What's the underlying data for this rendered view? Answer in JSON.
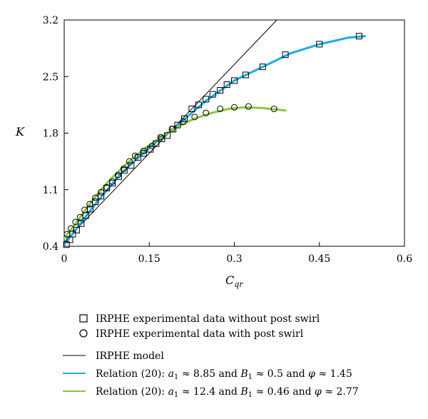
{
  "chart_data": {
    "type": "scatter",
    "title": "",
    "xlabel": "C",
    "xlabel_sub": "qr",
    "ylabel": "K",
    "xlim": [
      0,
      0.6
    ],
    "ylim": [
      0.4,
      3.2
    ],
    "x_ticks": [
      0,
      0.15,
      0.3,
      0.45,
      0.6
    ],
    "x_tick_labels": [
      "0",
      "0.15",
      "0.3",
      "0.45",
      "0.6"
    ],
    "y_ticks": [
      0.4,
      1.1,
      1.8,
      2.5,
      3.2
    ],
    "y_tick_labels": [
      "0.4",
      "1.1",
      "1.8",
      "2.5",
      "3.2"
    ],
    "grid": false,
    "legend_position": "bottom",
    "series": [
      {
        "name": "IRPHE experimental data without post swirl",
        "kind": "markers",
        "marker": "square",
        "color": "#000000",
        "x": [
          0.004,
          0.01,
          0.015,
          0.022,
          0.03,
          0.038,
          0.046,
          0.055,
          0.065,
          0.075,
          0.085,
          0.096,
          0.106,
          0.118,
          0.13,
          0.14,
          0.152,
          0.162,
          0.172,
          0.182,
          0.192,
          0.2,
          0.212,
          0.225,
          0.237,
          0.25,
          0.262,
          0.275,
          0.287,
          0.3,
          0.32,
          0.35,
          0.39,
          0.45,
          0.52
        ],
        "y": [
          0.42,
          0.48,
          0.55,
          0.6,
          0.68,
          0.78,
          0.86,
          0.95,
          1.02,
          1.12,
          1.18,
          1.26,
          1.34,
          1.4,
          1.5,
          1.55,
          1.6,
          1.67,
          1.73,
          1.77,
          1.85,
          1.9,
          1.98,
          2.1,
          2.15,
          2.22,
          2.28,
          2.33,
          2.4,
          2.45,
          2.52,
          2.62,
          2.77,
          2.9,
          3.0
        ]
      },
      {
        "name": "IRPHE experimental data with post swirl",
        "kind": "markers",
        "marker": "circle",
        "color": "#000000",
        "x": [
          0.005,
          0.012,
          0.02,
          0.028,
          0.036,
          0.045,
          0.055,
          0.065,
          0.075,
          0.085,
          0.095,
          0.105,
          0.115,
          0.125,
          0.14,
          0.155,
          0.17,
          0.19,
          0.21,
          0.23,
          0.25,
          0.275,
          0.3,
          0.325,
          0.37
        ],
        "y": [
          0.55,
          0.62,
          0.7,
          0.76,
          0.85,
          0.92,
          1.0,
          1.07,
          1.13,
          1.2,
          1.28,
          1.36,
          1.45,
          1.52,
          1.58,
          1.64,
          1.75,
          1.85,
          1.94,
          2.0,
          2.05,
          2.1,
          2.12,
          2.13,
          2.1
        ]
      },
      {
        "name": "IRPHE model",
        "kind": "line",
        "color": "#000000",
        "width": 1,
        "x": [
          0.0,
          0.375
        ],
        "y": [
          0.45,
          3.2
        ]
      },
      {
        "name": "Relation (20): a₁ ≈ 8.85 and B₁ ≈ 0.5 and φ ≈ 1.45",
        "kind": "line",
        "color": "#1fa9e1",
        "width": 3,
        "x": [
          0.0,
          0.02,
          0.05,
          0.1,
          0.15,
          0.2,
          0.25,
          0.3,
          0.35,
          0.4,
          0.45,
          0.5,
          0.53
        ],
        "y": [
          0.42,
          0.6,
          0.88,
          1.3,
          1.62,
          1.9,
          2.2,
          2.45,
          2.62,
          2.79,
          2.9,
          2.98,
          3.0
        ]
      },
      {
        "name": "Relation (20): a₁ ≈ 12.4 and B₁ ≈ 0.46 and φ ≈ 2.77",
        "kind": "line",
        "color": "#8cc63f",
        "width": 3,
        "x": [
          0.0,
          0.02,
          0.05,
          0.08,
          0.11,
          0.14,
          0.17,
          0.2,
          0.23,
          0.26,
          0.29,
          0.32,
          0.35,
          0.39
        ],
        "y": [
          0.5,
          0.68,
          0.97,
          1.22,
          1.42,
          1.6,
          1.75,
          1.88,
          1.98,
          2.05,
          2.1,
          2.12,
          2.11,
          2.08
        ]
      }
    ]
  },
  "legend": [
    {
      "key": "sq",
      "text": "IRPHE experimental data without post swirl"
    },
    {
      "key": "circ",
      "text": "IRPHE experimental data with post swirl"
    },
    {
      "key": "model",
      "text": "IRPHE model"
    },
    {
      "key": "blue",
      "prefix": "Relation (20): ",
      "a": "a",
      "a_sub": "1",
      "a_val": " ≈ 8.85 and ",
      "b": "B",
      "b_sub": "1",
      "b_val": " ≈ 0.5 and ",
      "phi": "φ",
      "phi_val": " ≈ 1.45"
    },
    {
      "key": "green",
      "prefix": "Relation (20): ",
      "a": "a",
      "a_sub": "1",
      "a_val": " ≈ 12.4 and ",
      "b": "B",
      "b_sub": "1",
      "b_val": " ≈ 0.46 and ",
      "phi": "φ",
      "phi_val": " ≈ 2.77"
    }
  ]
}
